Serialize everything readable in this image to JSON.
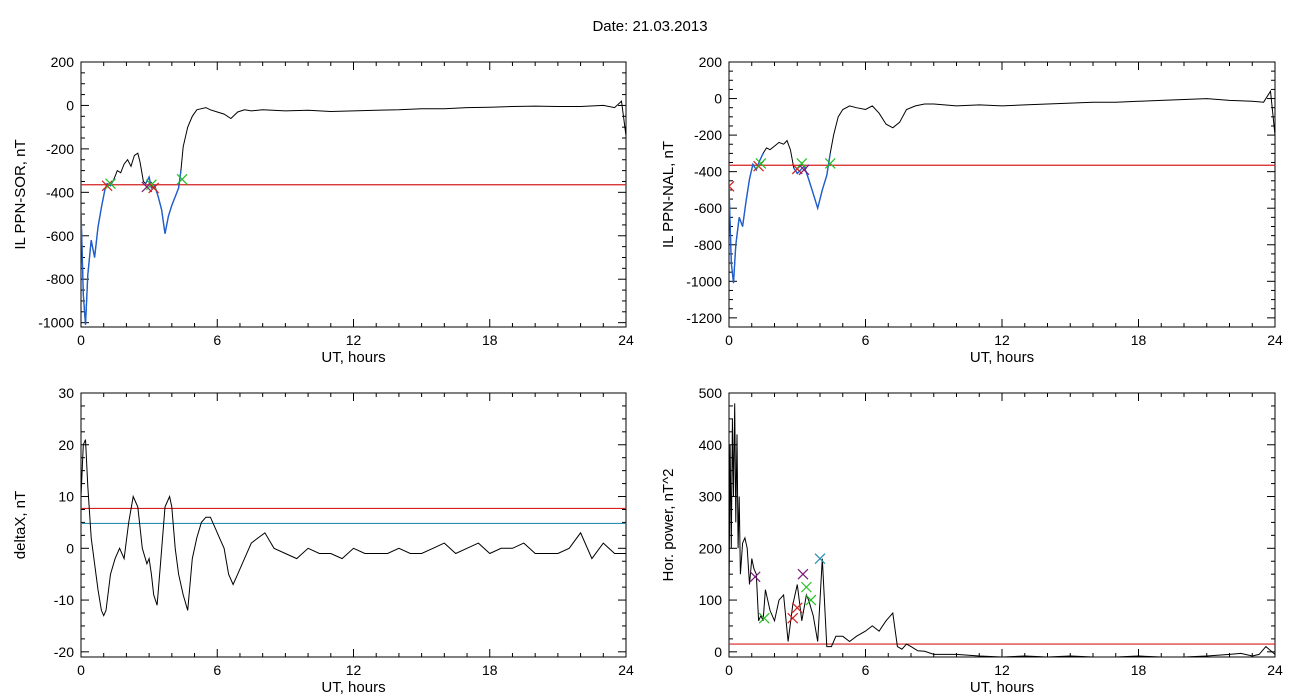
{
  "figure": {
    "title": "Date:  21.03.2013"
  },
  "chart_data": [
    {
      "type": "line",
      "title": "",
      "xlabel": "UT, hours",
      "ylabel": "IL PPN-SOR, nT",
      "xlim": [
        0,
        24
      ],
      "ylim": [
        -1020,
        200
      ],
      "xticks": [
        0,
        6,
        12,
        18,
        24
      ],
      "yticks": [
        200,
        0,
        -200,
        -400,
        -600,
        -800,
        -1000
      ],
      "ytick_labels": [
        "200",
        "0",
        "-200",
        "-400",
        "-600",
        "-800",
        "-1000"
      ],
      "colors": {
        "main": "#000000",
        "highlight": "#1f5fd0",
        "threshold": "#d42020",
        "x_red": "#d42020",
        "x_green": "#20c020",
        "x_purple": "#7a1a7a"
      },
      "series": [
        {
          "role": "main",
          "x": [
            0,
            0.1,
            0.2,
            0.3,
            0.45,
            0.6,
            0.75,
            0.9,
            1.05,
            1.15,
            1.3,
            1.45,
            1.6,
            1.75,
            1.9,
            2.05,
            2.2,
            2.35,
            2.5,
            2.6,
            2.75,
            2.85,
            3.0,
            3.1,
            3.25,
            3.4,
            3.55,
            3.7,
            3.85,
            4.0,
            4.15,
            4.3,
            4.4,
            4.5,
            4.7,
            4.9,
            5.1,
            5.3,
            5.5,
            5.7,
            6.0,
            6.3,
            6.6,
            6.9,
            7.2,
            7.5,
            8,
            9,
            10,
            11,
            12,
            13,
            14,
            15,
            16,
            17,
            18,
            19,
            20,
            21,
            22,
            23,
            23.5,
            23.8,
            24
          ],
          "y": [
            -480,
            -870,
            -1010,
            -780,
            -620,
            -700,
            -560,
            -470,
            -390,
            -360,
            -370,
            -340,
            -300,
            -310,
            -270,
            -250,
            -280,
            -230,
            -220,
            -260,
            -350,
            -360,
            -330,
            -380,
            -370,
            -420,
            -480,
            -590,
            -510,
            -460,
            -420,
            -380,
            -300,
            -190,
            -100,
            -50,
            -20,
            -15,
            -10,
            -20,
            -30,
            -40,
            -60,
            -30,
            -20,
            -25,
            -20,
            -25,
            -22,
            -28,
            -25,
            -22,
            -20,
            -15,
            -15,
            -10,
            -8,
            -5,
            -3,
            -5,
            -5,
            0,
            -10,
            20,
            -140
          ]
        },
        {
          "role": "highlight",
          "x": [
            0,
            0.1,
            0.2,
            0.3,
            0.45,
            0.6,
            0.75,
            0.9,
            1.05,
            1.15,
            1.3,
            1.45
          ],
          "y": [
            -480,
            -870,
            -1010,
            -780,
            -620,
            -700,
            -560,
            -470,
            -390,
            -360,
            -370,
            -340
          ]
        },
        {
          "role": "highlight",
          "x": [
            2.85,
            3.0,
            3.1,
            3.25,
            3.4,
            3.55,
            3.7,
            3.85,
            4.0,
            4.15,
            4.3,
            4.4
          ],
          "y": [
            -360,
            -330,
            -380,
            -370,
            -420,
            -480,
            -590,
            -510,
            -460,
            -420,
            -380,
            -300
          ]
        }
      ],
      "threshold": -365,
      "markers": [
        {
          "x": 1.15,
          "y": -370,
          "color": "x_red"
        },
        {
          "x": 1.3,
          "y": -360,
          "color": "x_green"
        },
        {
          "x": 2.9,
          "y": -375,
          "color": "x_purple"
        },
        {
          "x": 3.1,
          "y": -365,
          "color": "x_green"
        },
        {
          "x": 3.2,
          "y": -380,
          "color": "x_red"
        },
        {
          "x": 4.45,
          "y": -340,
          "color": "x_green"
        }
      ]
    },
    {
      "type": "line",
      "title": "",
      "xlabel": "UT, hours",
      "ylabel": "IL PPN-NAL, nT",
      "xlim": [
        0,
        24
      ],
      "ylim": [
        -1250,
        200
      ],
      "xticks": [
        0,
        6,
        12,
        18,
        24
      ],
      "yticks": [
        200,
        0,
        -200,
        -400,
        -600,
        -800,
        -1000,
        -1200
      ],
      "ytick_labels": [
        "200",
        "0",
        "-200",
        "-400",
        "-600",
        "-800",
        "-1000",
        "-1200"
      ],
      "colors": {
        "main": "#000000",
        "highlight": "#1f5fd0",
        "threshold": "#d42020",
        "x_red": "#d42020",
        "x_green": "#20c020",
        "x_purple": "#7a1a7a"
      },
      "series": [
        {
          "role": "main",
          "x": [
            0,
            0.1,
            0.2,
            0.3,
            0.45,
            0.6,
            0.75,
            0.9,
            1.05,
            1.2,
            1.35,
            1.5,
            1.65,
            1.8,
            2.0,
            2.2,
            2.4,
            2.55,
            2.7,
            2.85,
            3.0,
            3.15,
            3.3,
            3.5,
            3.7,
            3.9,
            4.1,
            4.3,
            4.45,
            4.6,
            4.8,
            5.0,
            5.3,
            5.6,
            6.0,
            6.3,
            6.6,
            6.9,
            7.2,
            7.5,
            7.8,
            8.2,
            8.6,
            9,
            10,
            11,
            12,
            13,
            14,
            15,
            16,
            17,
            18,
            19,
            20,
            21,
            22,
            23,
            23.5,
            23.8,
            24
          ],
          "y": [
            -480,
            -900,
            -1010,
            -800,
            -650,
            -700,
            -560,
            -440,
            -360,
            -390,
            -340,
            -300,
            -270,
            -280,
            -260,
            -240,
            -250,
            -230,
            -280,
            -380,
            -410,
            -390,
            -370,
            -440,
            -520,
            -600,
            -500,
            -420,
            -300,
            -200,
            -100,
            -60,
            -40,
            -50,
            -60,
            -40,
            -80,
            -140,
            -160,
            -130,
            -60,
            -40,
            -30,
            -30,
            -40,
            -35,
            -40,
            -35,
            -30,
            -25,
            -20,
            -20,
            -15,
            -10,
            -5,
            0,
            -10,
            -15,
            -20,
            40,
            -200
          ]
        },
        {
          "role": "highlight",
          "x": [
            0,
            0.1,
            0.2,
            0.3,
            0.45,
            0.6,
            0.75,
            0.9,
            1.05,
            1.2,
            1.35,
            1.5
          ],
          "y": [
            -480,
            -900,
            -1010,
            -800,
            -650,
            -700,
            -560,
            -440,
            -360,
            -390,
            -340,
            -300
          ]
        },
        {
          "role": "highlight",
          "x": [
            2.85,
            3.0,
            3.15,
            3.3,
            3.5,
            3.7,
            3.9,
            4.1,
            4.3,
            4.45
          ],
          "y": [
            -380,
            -410,
            -390,
            -370,
            -440,
            -520,
            -600,
            -500,
            -420,
            -300
          ]
        }
      ],
      "threshold": -365,
      "markers": [
        {
          "x": 0,
          "y": -480,
          "color": "x_red"
        },
        {
          "x": 1.3,
          "y": -370,
          "color": "x_red"
        },
        {
          "x": 1.4,
          "y": -355,
          "color": "x_green"
        },
        {
          "x": 3.0,
          "y": -385,
          "color": "x_red"
        },
        {
          "x": 3.2,
          "y": -355,
          "color": "x_green"
        },
        {
          "x": 3.3,
          "y": -390,
          "color": "x_purple"
        },
        {
          "x": 4.45,
          "y": -355,
          "color": "x_green"
        }
      ]
    },
    {
      "type": "line",
      "title": "",
      "xlabel": "UT, hours",
      "ylabel": "deltaX, nT",
      "xlim": [
        0,
        24
      ],
      "ylim": [
        -21,
        30
      ],
      "xticks": [
        0,
        6,
        12,
        18,
        24
      ],
      "yticks": [
        30,
        20,
        10,
        0,
        -10,
        -20
      ],
      "ytick_labels": [
        "30",
        "20",
        "10",
        "0",
        "-10",
        "-20"
      ],
      "colors": {
        "main": "#000000",
        "threshold": "#d42020",
        "threshold2": "#2a90b0"
      },
      "series": [
        {
          "role": "main",
          "x": [
            0,
            0.1,
            0.2,
            0.3,
            0.45,
            0.6,
            0.75,
            0.9,
            1.0,
            1.1,
            1.3,
            1.5,
            1.7,
            1.9,
            2.1,
            2.3,
            2.5,
            2.7,
            2.9,
            3.0,
            3.1,
            3.2,
            3.35,
            3.5,
            3.7,
            3.9,
            4.0,
            4.15,
            4.3,
            4.5,
            4.7,
            4.9,
            5.1,
            5.3,
            5.5,
            5.7,
            5.9,
            6.1,
            6.3,
            6.5,
            6.7,
            6.9,
            7.2,
            7.5,
            7.8,
            8.1,
            8.5,
            9,
            9.5,
            10,
            10.5,
            11,
            11.5,
            12,
            12.5,
            13,
            13.5,
            14,
            14.5,
            15,
            15.5,
            16,
            16.5,
            17,
            17.5,
            18,
            18.5,
            19,
            19.5,
            20,
            20.5,
            21,
            21.5,
            22,
            22.5,
            23,
            23.5,
            24
          ],
          "y": [
            10,
            20,
            21,
            12,
            2,
            -3,
            -8,
            -12,
            -13,
            -12,
            -5,
            -2,
            0,
            -2,
            5,
            10,
            8,
            0,
            -3,
            -2,
            -5,
            -9,
            -11,
            -3,
            8,
            10,
            8,
            0,
            -5,
            -9,
            -12,
            -2,
            2,
            5,
            6,
            6,
            4,
            2,
            0,
            -5,
            -7,
            -5,
            -2,
            1,
            2,
            3,
            0,
            -1,
            -2,
            0,
            -1,
            -1,
            -2,
            0,
            -1,
            -1,
            -1,
            0,
            -1,
            -1,
            0,
            1,
            -1,
            0,
            1,
            -1,
            0,
            0,
            1,
            -1,
            -1,
            -1,
            0,
            3,
            -2,
            1,
            -1,
            -1
          ]
        }
      ],
      "threshold": 7.7,
      "threshold2": 4.8,
      "markers": []
    },
    {
      "type": "line",
      "title": "",
      "xlabel": "UT, hours",
      "ylabel": "Hor. power, nT^2",
      "xlim": [
        0,
        24
      ],
      "ylim": [
        -10,
        500
      ],
      "xticks": [
        0,
        6,
        12,
        18,
        24
      ],
      "yticks": [
        500,
        400,
        300,
        200,
        100,
        0
      ],
      "ytick_labels": [
        "500",
        "400",
        "300",
        "200",
        "100",
        "0"
      ],
      "colors": {
        "main": "#000000",
        "threshold": "#d42020",
        "x_red": "#d42020",
        "x_green": "#20c020",
        "x_purple": "#7a1a7a",
        "x_cyan": "#2a90b0"
      },
      "series": [
        {
          "role": "main",
          "x": [
            0,
            0.05,
            0.1,
            0.15,
            0.2,
            0.25,
            0.3,
            0.35,
            0.4,
            0.45,
            0.5,
            0.6,
            0.7,
            0.8,
            0.9,
            1.0,
            1.1,
            1.2,
            1.3,
            1.4,
            1.5,
            1.6,
            1.8,
            2.0,
            2.2,
            2.4,
            2.6,
            2.8,
            3.0,
            3.2,
            3.4,
            3.5,
            3.7,
            3.9,
            4.1,
            4.3,
            4.5,
            4.7,
            5.0,
            5.3,
            5.6,
            6.0,
            6.3,
            6.6,
            6.9,
            7.2,
            7.4,
            7.6,
            7.8,
            8.0,
            8.3,
            8.6,
            9,
            10,
            11,
            12,
            13,
            14,
            15,
            16,
            17,
            18,
            19,
            20,
            21,
            22,
            22.5,
            23,
            23.3,
            23.6,
            24
          ],
          "y": [
            100,
            400,
            200,
            450,
            300,
            480,
            250,
            420,
            200,
            300,
            150,
            210,
            220,
            200,
            130,
            180,
            160,
            150,
            60,
            70,
            60,
            120,
            80,
            60,
            100,
            110,
            20,
            90,
            130,
            60,
            110,
            100,
            70,
            20,
            180,
            10,
            10,
            30,
            30,
            20,
            30,
            40,
            50,
            40,
            60,
            75,
            10,
            5,
            15,
            10,
            2,
            1,
            -5,
            -5,
            -8,
            -10,
            -8,
            -10,
            -8,
            -10,
            -10,
            -8,
            -10,
            -10,
            -8,
            -5,
            -3,
            -8,
            -5,
            10,
            -5
          ]
        }
      ],
      "threshold": 15,
      "markers": [
        {
          "x": 1.15,
          "y": 145,
          "color": "x_purple"
        },
        {
          "x": 1.55,
          "y": 65,
          "color": "x_green"
        },
        {
          "x": 2.8,
          "y": 65,
          "color": "x_red"
        },
        {
          "x": 3.0,
          "y": 85,
          "color": "x_red"
        },
        {
          "x": 3.25,
          "y": 150,
          "color": "x_purple"
        },
        {
          "x": 3.4,
          "y": 125,
          "color": "x_green"
        },
        {
          "x": 3.6,
          "y": 100,
          "color": "x_green"
        },
        {
          "x": 4.0,
          "y": 180,
          "color": "x_cyan"
        }
      ]
    }
  ]
}
